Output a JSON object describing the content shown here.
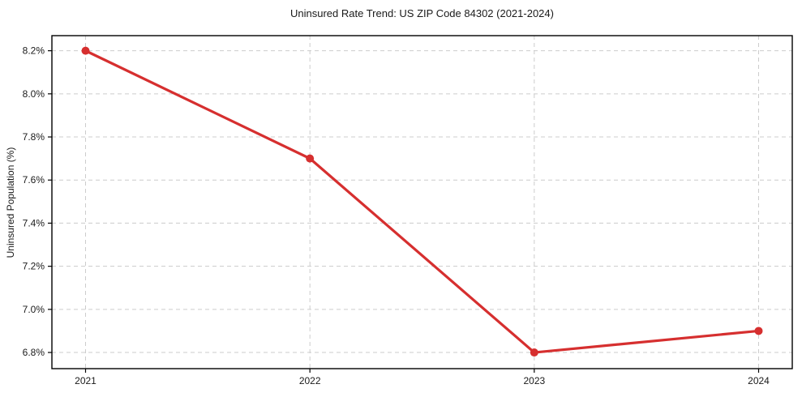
{
  "chart_data": {
    "type": "line",
    "title": "Uninsured Rate Trend: US ZIP Code 84302 (2021-2024)",
    "xlabel": "",
    "ylabel": "Uninsured Population (%)",
    "x": [
      2021,
      2022,
      2023,
      2024
    ],
    "series": [
      {
        "name": "Uninsured Rate",
        "values": [
          8.2,
          7.7,
          6.8,
          6.9
        ]
      }
    ],
    "xticks": [
      2021,
      2022,
      2023,
      2024
    ],
    "xtick_labels": [
      "2021",
      "2022",
      "2023",
      "2024"
    ],
    "yticks": [
      6.8,
      7.0,
      7.2,
      7.4,
      7.6,
      7.8,
      8.0,
      8.2
    ],
    "ytick_labels": [
      "6.8%",
      "7.0%",
      "7.2%",
      "7.4%",
      "7.6%",
      "7.8%",
      "8.0%",
      "8.2%"
    ],
    "xlim": [
      2020.85,
      2024.15
    ],
    "ylim": [
      6.725,
      8.27
    ],
    "grid": true,
    "legend": "none",
    "colors": {
      "line": "#d62f2f",
      "marker": "#d62f2f",
      "grid": "#cccccc",
      "spine": "#000000",
      "text": "#1a1a1a",
      "background": "#ffffff"
    }
  }
}
